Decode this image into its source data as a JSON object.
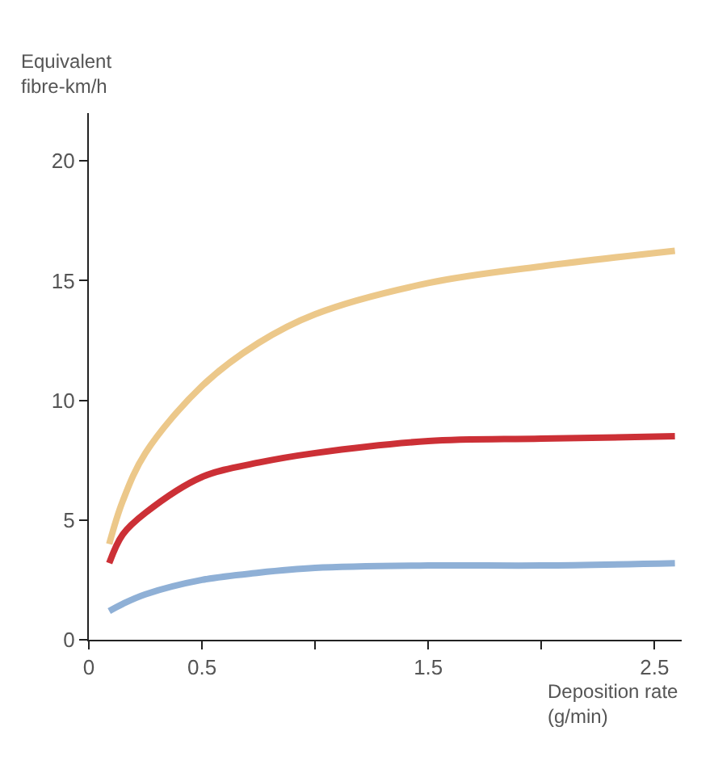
{
  "chart_data": {
    "type": "line",
    "xlabel": "Deposition rate\n(g/min)",
    "ylabel": "Equivalent\nfibre-km/h",
    "x": [
      0.09,
      0.15,
      0.25,
      0.5,
      0.75,
      1.0,
      1.5,
      2.0,
      2.59
    ],
    "series": [
      {
        "color": "#ecc88a",
        "values": [
          4.0,
          5.8,
          7.8,
          10.6,
          12.4,
          13.6,
          14.9,
          15.6,
          16.25
        ]
      },
      {
        "color": "#cc3036",
        "values": [
          3.2,
          4.4,
          5.3,
          6.8,
          7.4,
          7.8,
          8.3,
          8.4,
          8.5
        ]
      },
      {
        "color": "#8fb0d6",
        "values": [
          1.2,
          1.5,
          1.9,
          2.5,
          2.8,
          3.0,
          3.1,
          3.1,
          3.2
        ]
      }
    ],
    "xlim": [
      0,
      2.62
    ],
    "ylim": [
      0,
      22
    ],
    "xticks": [
      0,
      0.5,
      {
        "value": 1,
        "label": null
      },
      1.5,
      {
        "value": 2,
        "label": null
      },
      2.5
    ],
    "yticks": [
      0,
      5,
      10,
      15,
      20
    ],
    "marker": "none",
    "line_style": "solid"
  }
}
